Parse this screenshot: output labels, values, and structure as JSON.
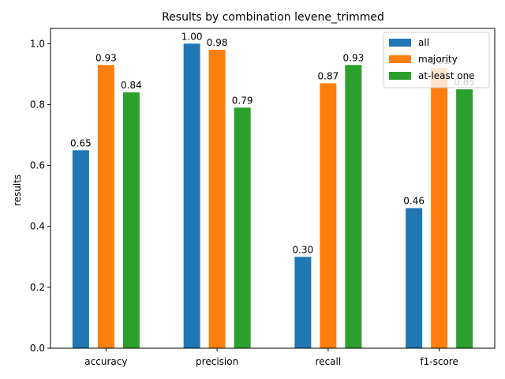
{
  "chart_data": {
    "type": "bar",
    "title": "Results by combination levene_trimmed",
    "xlabel": "",
    "ylabel": "results",
    "categories": [
      "accuracy",
      "precision",
      "recall",
      "f1-score"
    ],
    "ylim": [
      0,
      1.05
    ],
    "yticks": [
      0.0,
      0.2,
      0.4,
      0.6,
      0.8,
      1.0
    ],
    "ytick_labels": [
      "0.0",
      "0.2",
      "0.4",
      "0.6",
      "0.8",
      "1.0"
    ],
    "grid": false,
    "legend_position": "top-right",
    "series": [
      {
        "name": "all",
        "color": "#1f77b4",
        "values": [
          0.65,
          1.0,
          0.3,
          0.46
        ],
        "labels": [
          "0.65",
          "1.00",
          "0.30",
          "0.46"
        ]
      },
      {
        "name": "majority",
        "color": "#ff7f0e",
        "values": [
          0.93,
          0.98,
          0.87,
          0.92
        ],
        "labels": [
          "0.93",
          "0.98",
          "0.87",
          "0.92"
        ]
      },
      {
        "name": "at-least one",
        "color": "#2ca02c",
        "values": [
          0.84,
          0.79,
          0.93,
          0.85
        ],
        "labels": [
          "0.84",
          "0.79",
          "0.93",
          "0.85"
        ]
      }
    ]
  }
}
